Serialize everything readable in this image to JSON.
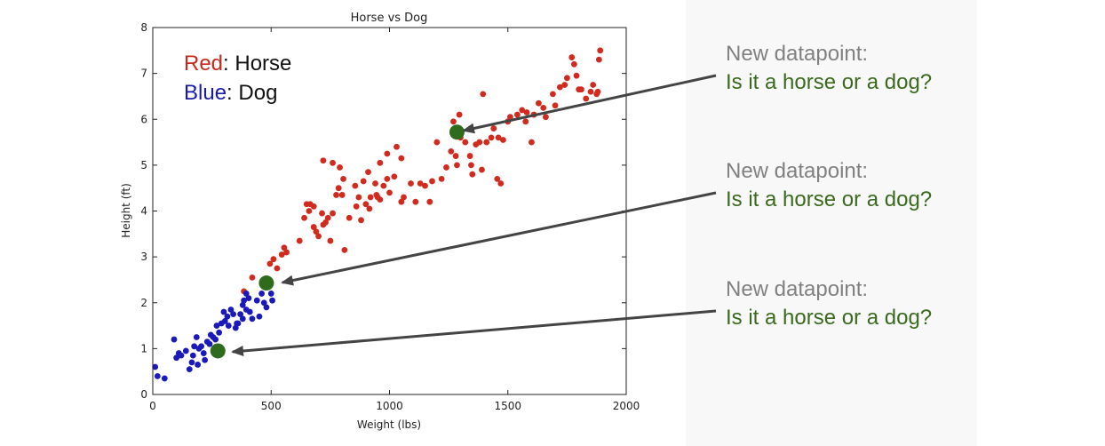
{
  "chart_data": {
    "type": "scatter",
    "title": "Horse vs Dog",
    "xlabel": "Weight (lbs)",
    "ylabel": "Height (ft)",
    "xlim": [
      0,
      2000
    ],
    "ylim": [
      0,
      8
    ],
    "xticks": [
      "0",
      "500",
      "1000",
      "1500",
      "2000"
    ],
    "yticks": [
      "0",
      "1",
      "2",
      "3",
      "4",
      "5",
      "6",
      "7",
      "8"
    ],
    "grid": false,
    "legend_position": "top-left",
    "legend": [
      {
        "color_word": "Red",
        "sep": ": ",
        "name": "Horse",
        "color": "#c8281e"
      },
      {
        "color_word": "Blue",
        "sep": ": ",
        "name": "Dog",
        "color": "#1a1aaa"
      }
    ],
    "series": [
      {
        "name": "Horse",
        "color": "#d12a1e",
        "points": [
          [
            385,
            2.25
          ],
          [
            420,
            2.55
          ],
          [
            465,
            2.45
          ],
          [
            495,
            2.85
          ],
          [
            510,
            2.95
          ],
          [
            525,
            2.75
          ],
          [
            545,
            3.05
          ],
          [
            555,
            3.2
          ],
          [
            565,
            3.1
          ],
          [
            620,
            3.35
          ],
          [
            640,
            3.85
          ],
          [
            650,
            4.15
          ],
          [
            660,
            4.0
          ],
          [
            665,
            4.15
          ],
          [
            680,
            3.65
          ],
          [
            690,
            3.55
          ],
          [
            700,
            3.45
          ],
          [
            715,
            3.95
          ],
          [
            720,
            3.7
          ],
          [
            730,
            3.75
          ],
          [
            740,
            3.85
          ],
          [
            750,
            3.35
          ],
          [
            760,
            3.95
          ],
          [
            775,
            4.35
          ],
          [
            785,
            4.5
          ],
          [
            800,
            4.35
          ],
          [
            805,
            4.7
          ],
          [
            810,
            3.15
          ],
          [
            830,
            3.85
          ],
          [
            855,
            4.55
          ],
          [
            860,
            4.1
          ],
          [
            870,
            4.3
          ],
          [
            880,
            3.8
          ],
          [
            890,
            4.65
          ],
          [
            900,
            4.15
          ],
          [
            915,
            4.05
          ],
          [
            920,
            4.3
          ],
          [
            940,
            4.6
          ],
          [
            945,
            4.35
          ],
          [
            950,
            4.3
          ],
          [
            960,
            4.25
          ],
          [
            975,
            4.55
          ],
          [
            990,
            4.7
          ],
          [
            1000,
            4.4
          ],
          [
            1020,
            4.75
          ],
          [
            1050,
            4.2
          ],
          [
            1060,
            4.3
          ],
          [
            1090,
            4.6
          ],
          [
            1110,
            4.2
          ],
          [
            1130,
            4.6
          ],
          [
            1150,
            4.55
          ],
          [
            1180,
            4.65
          ],
          [
            1220,
            4.7
          ],
          [
            1240,
            4.95
          ],
          [
            1260,
            5.3
          ],
          [
            1280,
            5.2
          ],
          [
            1300,
            5.6
          ],
          [
            1320,
            5.5
          ],
          [
            1340,
            5.2
          ],
          [
            1345,
            5.0
          ],
          [
            1350,
            4.8
          ],
          [
            1365,
            5.45
          ],
          [
            1380,
            5.5
          ],
          [
            1410,
            5.5
          ],
          [
            1430,
            5.6
          ],
          [
            1440,
            5.8
          ],
          [
            1460,
            5.6
          ],
          [
            1480,
            5.55
          ],
          [
            1500,
            5.95
          ],
          [
            1510,
            6.05
          ],
          [
            1540,
            6.1
          ],
          [
            1560,
            6.2
          ],
          [
            1580,
            6.15
          ],
          [
            1610,
            6.1
          ],
          [
            1630,
            6.35
          ],
          [
            1650,
            6.25
          ],
          [
            1660,
            6.05
          ],
          [
            1690,
            6.55
          ],
          [
            1700,
            6.3
          ],
          [
            1720,
            6.7
          ],
          [
            1740,
            6.75
          ],
          [
            1750,
            6.9
          ],
          [
            1770,
            7.35
          ],
          [
            1780,
            7.2
          ],
          [
            1790,
            6.95
          ],
          [
            1800,
            6.65
          ],
          [
            1810,
            6.65
          ],
          [
            1830,
            6.45
          ],
          [
            1850,
            6.6
          ],
          [
            1860,
            6.75
          ],
          [
            1880,
            6.6
          ],
          [
            1885,
            7.3
          ],
          [
            1890,
            7.5
          ],
          [
            1875,
            6.55
          ],
          [
            1600,
            5.5
          ],
          [
            1575,
            5.95
          ],
          [
            1470,
            4.6
          ],
          [
            1455,
            4.7
          ],
          [
            1395,
            6.55
          ],
          [
            1390,
            4.9
          ],
          [
            1295,
            6.1
          ],
          [
            1285,
            5.0
          ],
          [
            1270,
            5.95
          ],
          [
            1200,
            5.5
          ],
          [
            1170,
            4.2
          ],
          [
            1050,
            5.15
          ],
          [
            1030,
            5.4
          ],
          [
            990,
            5.25
          ],
          [
            960,
            5.05
          ],
          [
            910,
            4.85
          ],
          [
            760,
            5.05
          ],
          [
            720,
            5.1
          ],
          [
            680,
            4.1
          ],
          [
            790,
            4.95
          ]
        ]
      },
      {
        "name": "Dog",
        "color": "#1a1abb",
        "points": [
          [
            10,
            0.6
          ],
          [
            20,
            0.4
          ],
          [
            50,
            0.35
          ],
          [
            90,
            1.2
          ],
          [
            110,
            0.9
          ],
          [
            120,
            0.85
          ],
          [
            140,
            0.95
          ],
          [
            155,
            0.55
          ],
          [
            165,
            0.7
          ],
          [
            170,
            0.85
          ],
          [
            185,
            1.25
          ],
          [
            190,
            0.65
          ],
          [
            195,
            1.0
          ],
          [
            205,
            1.05
          ],
          [
            215,
            0.9
          ],
          [
            220,
            0.75
          ],
          [
            230,
            1.15
          ],
          [
            245,
            1.3
          ],
          [
            255,
            1.25
          ],
          [
            270,
            1.5
          ],
          [
            280,
            1.35
          ],
          [
            290,
            1.55
          ],
          [
            305,
            1.6
          ],
          [
            315,
            1.7
          ],
          [
            320,
            1.5
          ],
          [
            330,
            1.85
          ],
          [
            340,
            1.75
          ],
          [
            350,
            1.45
          ],
          [
            360,
            1.55
          ],
          [
            370,
            1.75
          ],
          [
            380,
            1.95
          ],
          [
            385,
            2.05
          ],
          [
            395,
            1.85
          ],
          [
            405,
            2.1
          ],
          [
            410,
            1.8
          ],
          [
            420,
            1.65
          ],
          [
            440,
            2.05
          ],
          [
            450,
            1.7
          ],
          [
            460,
            2.2
          ],
          [
            470,
            2.0
          ],
          [
            480,
            1.9
          ],
          [
            500,
            2.2
          ],
          [
            505,
            2.05
          ],
          [
            100,
            0.8
          ],
          [
            240,
            1.1
          ],
          [
            175,
            1.05
          ],
          [
            355,
            1.55
          ],
          [
            265,
            1.2
          ],
          [
            300,
            1.8
          ],
          [
            380,
            1.65
          ],
          [
            395,
            2.2
          ]
        ]
      },
      {
        "name": "New datapoint",
        "color": "#2e6b1c",
        "points": [
          [
            1285,
            5.72
          ],
          [
            480,
            2.43
          ],
          [
            275,
            0.95
          ]
        ]
      }
    ]
  },
  "callouts": [
    {
      "line1": "New datapoint:",
      "line2": "Is it a horse or a dog?"
    },
    {
      "line1": "New datapoint:",
      "line2": "Is it a horse or a dog?"
    },
    {
      "line1": "New datapoint:",
      "line2": "Is it a horse or a dog?"
    }
  ]
}
